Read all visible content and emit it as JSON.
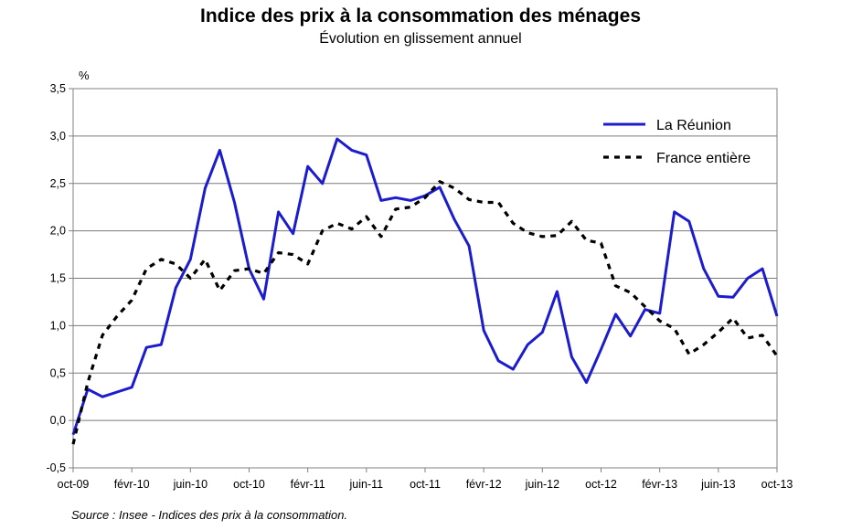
{
  "chart_data": {
    "type": "line",
    "title": "Indice des prix à la consommation des ménages",
    "subtitle": "Évolution en glissement annuel",
    "ylabel": "%",
    "ylim": [
      -0.5,
      3.5
    ],
    "yticks": [
      -0.5,
      0.0,
      0.5,
      1.0,
      1.5,
      2.0,
      2.5,
      3.0,
      3.5
    ],
    "ytick_labels": [
      "-0,5",
      "0,0",
      "0,5",
      "1,0",
      "1,5",
      "2,0",
      "2,5",
      "3,0",
      "3,5"
    ],
    "x_months": [
      "oct-09",
      "nov-09",
      "déc-09",
      "janv-10",
      "févr-10",
      "mars-10",
      "avr-10",
      "mai-10",
      "juin-10",
      "juil-10",
      "août-10",
      "sept-10",
      "oct-10",
      "nov-10",
      "déc-10",
      "janv-11",
      "févr-11",
      "mars-11",
      "avr-11",
      "mai-11",
      "juin-11",
      "juil-11",
      "août-11",
      "sept-11",
      "oct-11",
      "nov-11",
      "déc-11",
      "janv-12",
      "févr-12",
      "mars-12",
      "avr-12",
      "mai-12",
      "juin-12",
      "juil-12",
      "août-12",
      "sept-12",
      "oct-12",
      "nov-12",
      "déc-12",
      "janv-13",
      "févr-13",
      "mars-13",
      "avr-13",
      "mai-13",
      "juin-13",
      "juil-13",
      "août-13",
      "sept-13",
      "oct-13"
    ],
    "xtick_indices": [
      0,
      4,
      8,
      12,
      16,
      20,
      24,
      28,
      32,
      36,
      40,
      44,
      48
    ],
    "xtick_labels": [
      "oct-09",
      "févr-10",
      "juin-10",
      "oct-10",
      "févr-11",
      "juin-11",
      "oct-11",
      "févr-12",
      "juin-12",
      "oct-12",
      "févr-13",
      "juin-13",
      "oct-13"
    ],
    "grid": "horizontal",
    "legend_position": "top-right",
    "series": [
      {
        "name": "La Réunion",
        "color": "#1c1ccf",
        "style": "solid",
        "values": [
          -0.15,
          0.33,
          0.25,
          0.3,
          0.35,
          0.77,
          0.8,
          1.4,
          1.7,
          2.45,
          2.85,
          2.3,
          1.6,
          1.28,
          2.2,
          1.97,
          2.68,
          2.5,
          2.97,
          2.85,
          2.8,
          2.32,
          2.35,
          2.32,
          2.37,
          2.46,
          2.12,
          1.84,
          0.95,
          0.63,
          0.54,
          0.8,
          0.93,
          1.36,
          0.67,
          0.4,
          0.75,
          1.12,
          0.89,
          1.17,
          1.13,
          2.2,
          2.1,
          1.6,
          1.31,
          1.3,
          1.5,
          1.6,
          1.1
        ]
      },
      {
        "name": "France entière",
        "color": "#000000",
        "style": "dashed",
        "values": [
          -0.25,
          0.4,
          0.9,
          1.1,
          1.27,
          1.6,
          1.7,
          1.65,
          1.5,
          1.7,
          1.37,
          1.58,
          1.6,
          1.55,
          1.77,
          1.75,
          1.65,
          2.0,
          2.08,
          2.02,
          2.15,
          1.94,
          2.23,
          2.25,
          2.35,
          2.52,
          2.45,
          2.33,
          2.3,
          2.3,
          2.08,
          1.98,
          1.94,
          1.95,
          2.1,
          1.9,
          1.87,
          1.42,
          1.35,
          1.2,
          1.05,
          0.97,
          0.7,
          0.8,
          0.93,
          1.08,
          0.87,
          0.9,
          0.68
        ]
      }
    ]
  },
  "source": "Source : Insee - Indices des prix à la consommation."
}
